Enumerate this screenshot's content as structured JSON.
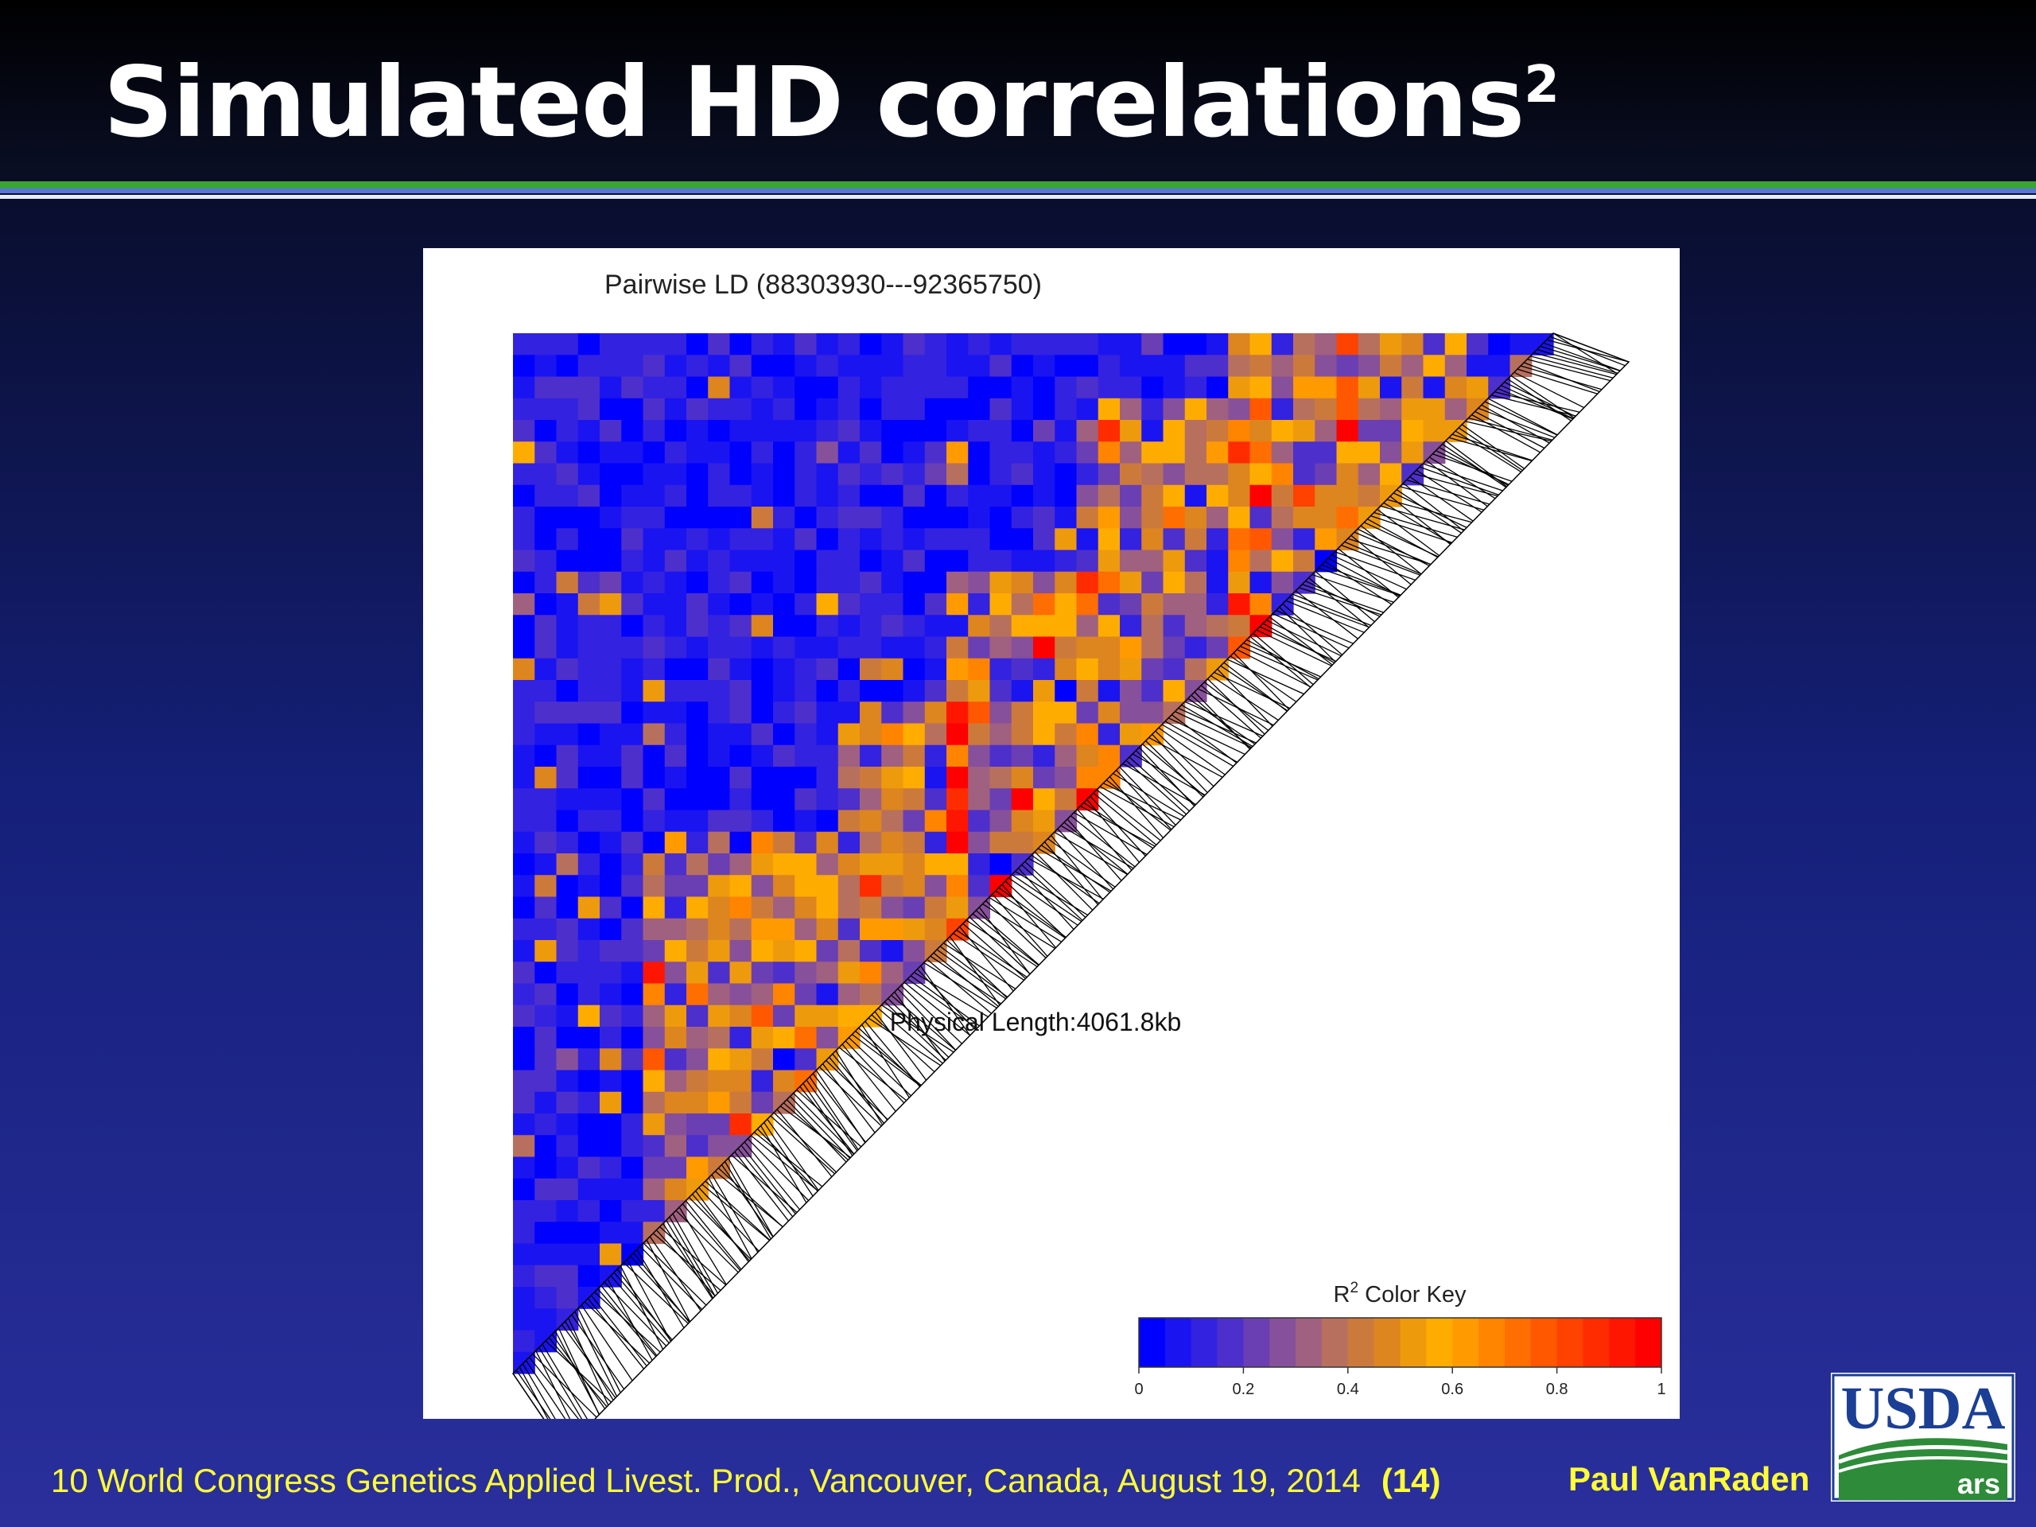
{
  "slide": {
    "title": "Simulated HD correlations",
    "title_superscript": "2",
    "footer": "10 World Congress Genetics Applied Livest. Prod., Vancouver, Canada, August 19, 2014",
    "page": "(14)",
    "author": "Paul VanRaden",
    "logo_text": "USDA",
    "logo_sub": "ars",
    "colors": {
      "text_yellow": "#ffff33",
      "rule_green": "#3aa535",
      "logo_blue": "#1b3f94",
      "logo_green": "#2e8b3a"
    }
  },
  "chart_data": {
    "type": "heatmap",
    "title": "Pairwise LD (88303930---92365750)",
    "region_start": 88303930,
    "region_end": 92365750,
    "annotation": "Physical Length:4061.8kb",
    "physical_length_kb": 4061.8,
    "color_key": {
      "label_prefix": "R",
      "label_superscript": "2",
      "label_suffix": " Color Key",
      "range": [
        0,
        1
      ],
      "ticks": [
        "0",
        "0.2",
        "0.4",
        "0.6",
        "0.8",
        "1"
      ],
      "colors": [
        "#0000ff",
        "#1a14f0",
        "#3322e0",
        "#4d2fcc",
        "#6a3fb4",
        "#87509a",
        "#a06080",
        "#b8705e",
        "#cc7a3c",
        "#dd851f",
        "#ee9a0d",
        "#ffac00",
        "#ff9a00",
        "#ff8400",
        "#ff6e00",
        "#ff5800",
        "#ff4200",
        "#ff2c00",
        "#ff1600",
        "#ff0000"
      ]
    }
  }
}
